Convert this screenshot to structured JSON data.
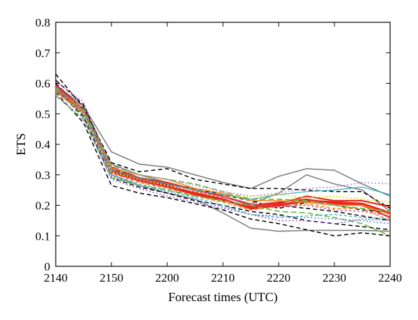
{
  "chart_data": {
    "type": "line",
    "xlabel": "Forecast times (UTC)",
    "ylabel": "ETS",
    "x_tick_labels": [
      "2140",
      "2150",
      "2200",
      "2210",
      "2220",
      "2230",
      "2240"
    ],
    "y_tick_labels": [
      "0",
      "0.1",
      "0.2",
      "0.3",
      "0.4",
      "0.5",
      "0.6",
      "0.7",
      "0.8"
    ],
    "ylim": [
      0,
      0.8
    ],
    "grid": false,
    "legend": "none",
    "x": [
      "2140",
      "2145",
      "2150",
      "2155",
      "2200",
      "2205",
      "2210",
      "2215",
      "2220",
      "2225",
      "2230",
      "2235",
      "2240"
    ],
    "series": [
      {
        "values": [
          0.595,
          0.525,
          0.375,
          0.335,
          0.325,
          0.3,
          0.275,
          0.255,
          0.295,
          0.32,
          0.315,
          0.27,
          0.23
        ],
        "color": "#808080",
        "dash": "solid",
        "width": 1.6
      },
      {
        "values": [
          0.575,
          0.505,
          0.3,
          0.265,
          0.24,
          0.22,
          0.175,
          0.125,
          0.115,
          0.118,
          0.118,
          0.118,
          0.115
        ],
        "color": "#808080",
        "dash": "solid",
        "width": 1.6
      },
      {
        "values": [
          0.59,
          0.515,
          0.335,
          0.3,
          0.275,
          0.25,
          0.23,
          0.205,
          0.24,
          0.3,
          0.27,
          0.25,
          0.18
        ],
        "color": "#808080",
        "dash": "solid",
        "width": 1.6
      },
      {
        "values": [
          0.63,
          0.52,
          0.34,
          0.31,
          0.32,
          0.285,
          0.27,
          0.255,
          0.255,
          0.25,
          0.245,
          0.245,
          0.19
        ],
        "color": "#000000",
        "dash": "6,4",
        "width": 1.5
      },
      {
        "values": [
          0.57,
          0.47,
          0.265,
          0.24,
          0.225,
          0.205,
          0.185,
          0.155,
          0.14,
          0.12,
          0.1,
          0.11,
          0.1
        ],
        "color": "#000000",
        "dash": "6,4",
        "width": 1.5
      },
      {
        "values": [
          0.58,
          0.49,
          0.29,
          0.26,
          0.24,
          0.215,
          0.2,
          0.18,
          0.17,
          0.15,
          0.14,
          0.13,
          0.12
        ],
        "color": "#000000",
        "dash": "6,4",
        "width": 1.5
      },
      {
        "values": [
          0.61,
          0.53,
          0.32,
          0.29,
          0.27,
          0.25,
          0.23,
          0.2,
          0.2,
          0.19,
          0.18,
          0.165,
          0.15
        ],
        "color": "#000000",
        "dash": "6,4",
        "width": 1.5
      },
      {
        "values": [
          0.6,
          0.51,
          0.31,
          0.285,
          0.27,
          0.255,
          0.235,
          0.215,
          0.19,
          0.21,
          0.2,
          0.185,
          0.175
        ],
        "color": "#000000",
        "dash": "6,4",
        "width": 1.5
      },
      {
        "values": [
          0.585,
          0.505,
          0.315,
          0.285,
          0.265,
          0.24,
          0.22,
          0.19,
          0.2,
          0.215,
          0.21,
          0.205,
          0.175
        ],
        "color": "#e8281e",
        "dash": "solid",
        "width": 3.2
      },
      {
        "values": [
          0.595,
          0.515,
          0.325,
          0.29,
          0.275,
          0.25,
          0.23,
          0.2,
          0.21,
          0.22,
          0.205,
          0.2,
          0.16
        ],
        "color": "#e8281e",
        "dash": "solid",
        "width": 2.2
      },
      {
        "values": [
          0.575,
          0.5,
          0.31,
          0.28,
          0.26,
          0.235,
          0.215,
          0.195,
          0.205,
          0.23,
          0.215,
          0.215,
          0.195
        ],
        "color": "#e8281e",
        "dash": "solid",
        "width": 2.2
      },
      {
        "values": [
          0.59,
          0.505,
          0.32,
          0.3,
          0.285,
          0.255,
          0.24,
          0.215,
          0.215,
          0.21,
          0.2,
          0.2,
          0.17
        ],
        "color": "#f28c20",
        "dash": "solid",
        "width": 1.6
      },
      {
        "values": [
          0.58,
          0.5,
          0.305,
          0.275,
          0.255,
          0.23,
          0.21,
          0.185,
          0.195,
          0.205,
          0.19,
          0.19,
          0.15
        ],
        "color": "#f28c20",
        "dash": "5,3",
        "width": 1.6
      },
      {
        "values": [
          0.56,
          0.48,
          0.29,
          0.265,
          0.25,
          0.23,
          0.215,
          0.2,
          0.18,
          0.175,
          0.16,
          0.14,
          0.1
        ],
        "color": "#6cc04a",
        "dash": "8,4",
        "width": 1.8
      },
      {
        "values": [
          0.585,
          0.515,
          0.33,
          0.3,
          0.285,
          0.27,
          0.245,
          0.22,
          0.22,
          0.215,
          0.2,
          0.19,
          0.18
        ],
        "color": "#6cc04a",
        "dash": "8,4",
        "width": 1.8
      },
      {
        "values": [
          0.59,
          0.51,
          0.315,
          0.29,
          0.27,
          0.25,
          0.235,
          0.22,
          0.235,
          0.245,
          0.25,
          0.26,
          0.235
        ],
        "color": "#2aa8b8",
        "dash": "solid",
        "width": 1.2
      },
      {
        "values": [
          0.575,
          0.495,
          0.3,
          0.27,
          0.25,
          0.225,
          0.2,
          0.17,
          0.16,
          0.165,
          0.17,
          0.16,
          0.155
        ],
        "color": "#2aa8b8",
        "dash": "4,3",
        "width": 1.2
      },
      {
        "values": [
          0.56,
          0.485,
          0.285,
          0.255,
          0.23,
          0.21,
          0.19,
          0.17,
          0.15,
          0.15,
          0.14,
          0.155,
          0.15
        ],
        "color": "#9b59d0",
        "dash": "2,3",
        "width": 1.6
      },
      {
        "values": [
          0.605,
          0.54,
          0.325,
          0.3,
          0.285,
          0.265,
          0.245,
          0.23,
          0.24,
          0.255,
          0.26,
          0.275,
          0.27
        ],
        "color": "#c77de0",
        "dash": "2,3",
        "width": 1.6
      },
      {
        "values": [
          0.58,
          0.5,
          0.295,
          0.265,
          0.245,
          0.22,
          0.195,
          0.17,
          0.165,
          0.16,
          0.155,
          0.15,
          0.14
        ],
        "color": "#5b8fd6",
        "dash": "2,3",
        "width": 1.6
      },
      {
        "values": [
          0.57,
          0.5,
          0.31,
          0.285,
          0.265,
          0.245,
          0.225,
          0.23,
          0.235,
          0.225,
          0.23,
          0.22,
          0.21
        ],
        "color": "#e8e000",
        "dash": "2,3",
        "width": 1.8
      },
      {
        "values": [
          0.59,
          0.51,
          0.305,
          0.28,
          0.26,
          0.245,
          0.225,
          0.205,
          0.195,
          0.2,
          0.185,
          0.18,
          0.165
        ],
        "color": "#d24aa0",
        "dash": "3,3",
        "width": 1.4
      }
    ]
  }
}
